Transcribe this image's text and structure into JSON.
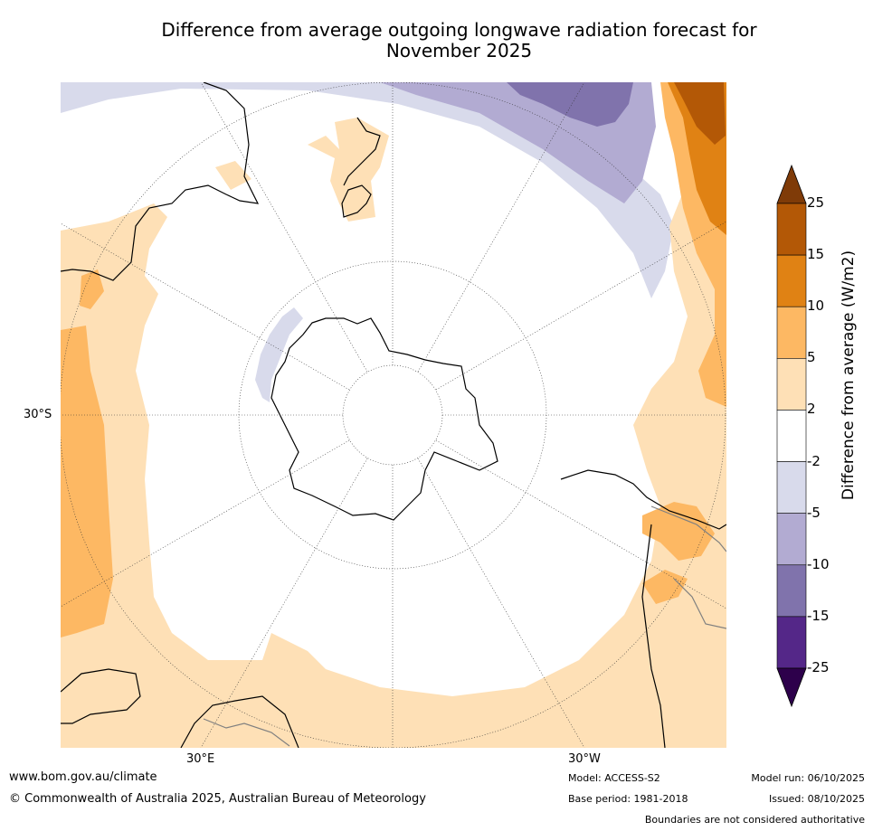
{
  "title_line1": "Difference from average outgoing longwave radiation forecast for",
  "title_line2": "November 2025",
  "map": {
    "projection": "south-polar-stereographic",
    "lat_label": "30°S",
    "lon_labels": [
      "30°E",
      "30°W"
    ]
  },
  "colorbar": {
    "label": "Difference from average (W/m2)",
    "ticks": [
      "25",
      "15",
      "10",
      "5",
      "2",
      "-2",
      "-5",
      "-10",
      "-15",
      "-25"
    ],
    "bins": [
      {
        "range": "15 to 25",
        "color": "#b35806"
      },
      {
        "range": "10 to 15",
        "color": "#e08214"
      },
      {
        "range": "5 to 10",
        "color": "#fdb863"
      },
      {
        "range": "2 to 5",
        "color": "#fee0b6"
      },
      {
        "range": "-2 to 2",
        "color": "#ffffff"
      },
      {
        "range": "-5 to -2",
        "color": "#d8daeb"
      },
      {
        "range": "-10 to -5",
        "color": "#b2abd2"
      },
      {
        "range": "-15 to -10",
        "color": "#8073ac"
      },
      {
        "range": "-25 to -15",
        "color": "#542788"
      }
    ],
    "over_color": "#7f3b08",
    "under_color": "#2d004b"
  },
  "footer": {
    "website": "www.bom.gov.au/climate",
    "copyright": "© Commonwealth of Australia 2025, Australian Bureau of Meteorology",
    "model": "Model: ACCESS-S2",
    "base_period": "Base period: 1981-2018",
    "model_run": "Model run: 06/10/2025",
    "issued": "Issued: 08/10/2025",
    "disclaimer": "Boundaries are not considered authoritative"
  }
}
